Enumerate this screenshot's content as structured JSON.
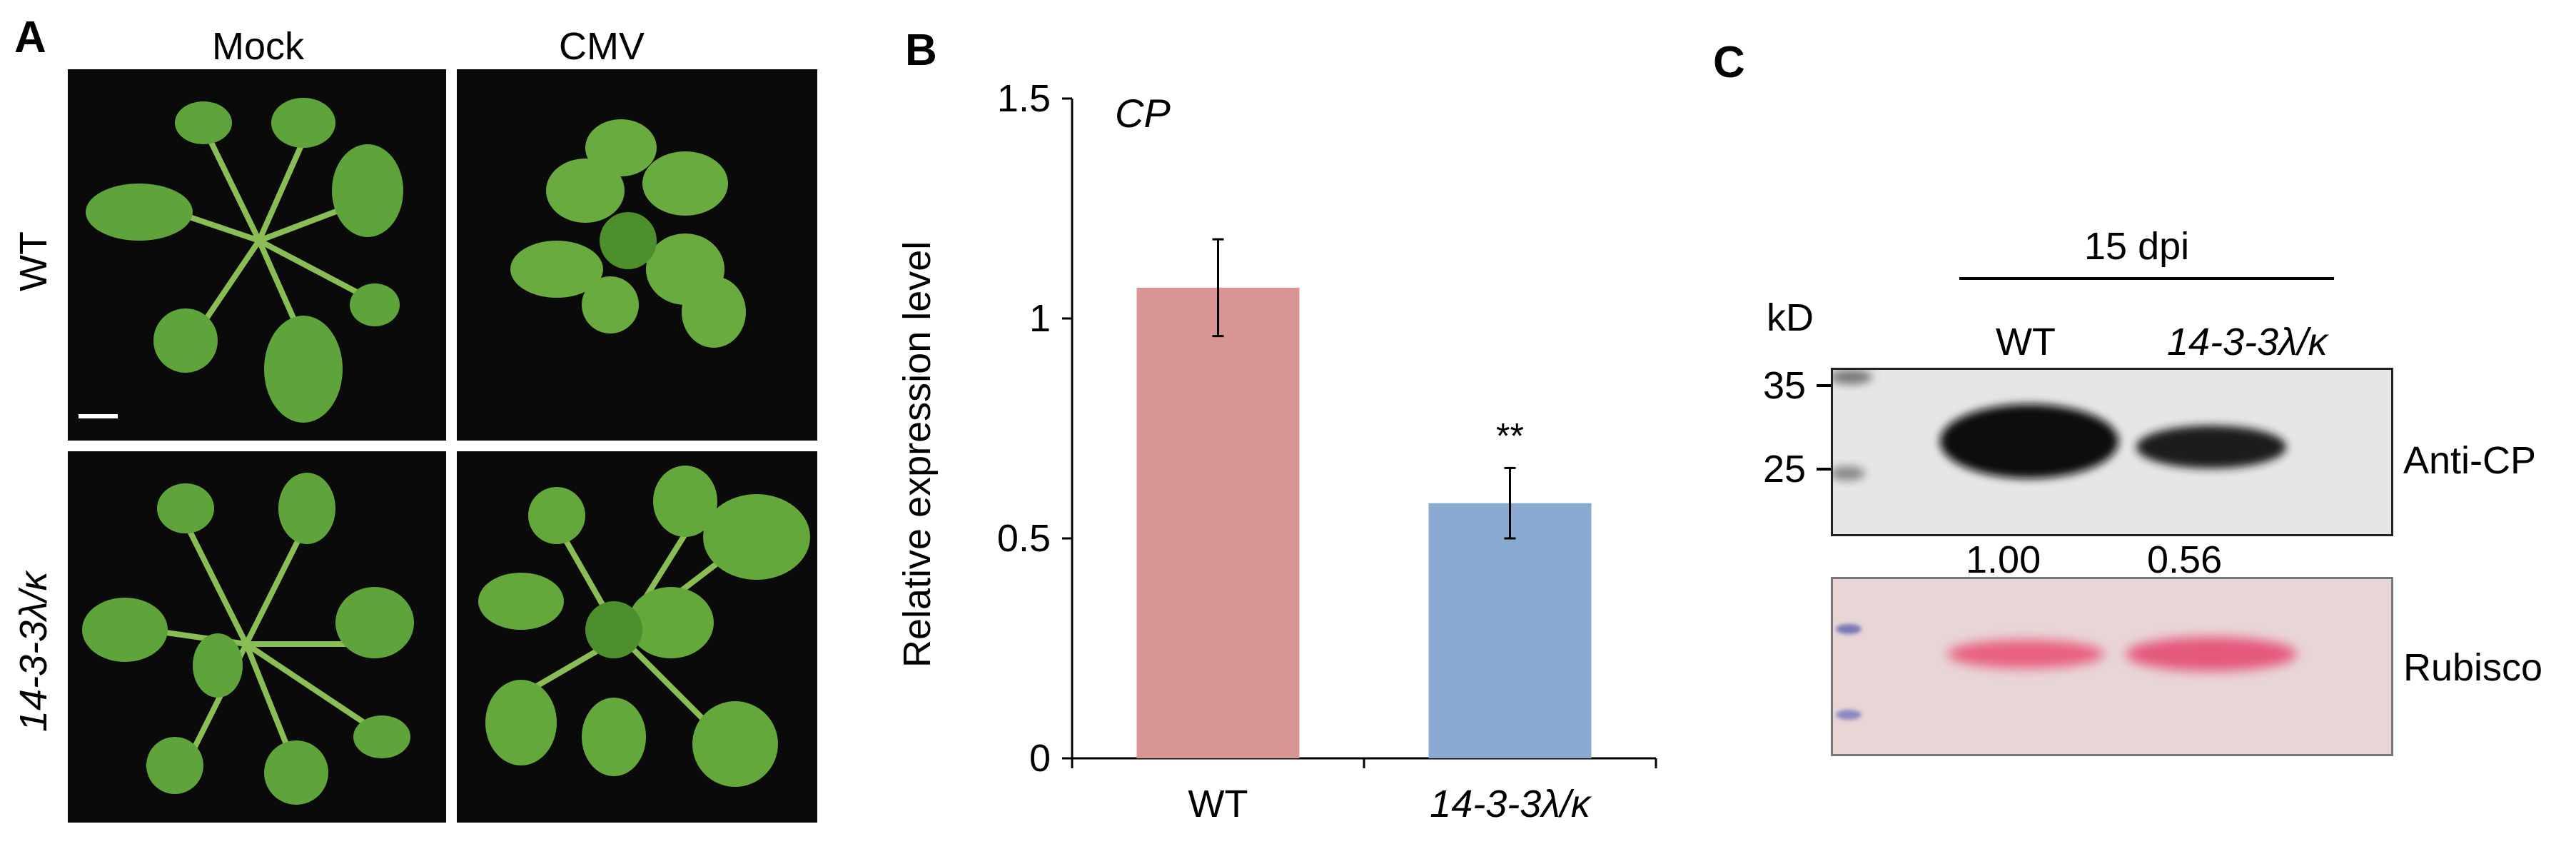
{
  "panel_a": {
    "letter": "A",
    "columns": [
      "Mock",
      "CMV"
    ],
    "rows": [
      "WT",
      "14-3-3λ/κ"
    ],
    "photo_descriptions": [
      "wt-mock-plant",
      "wt-cmv-plant",
      "mutant-mock-plant",
      "mutant-cmv-plant"
    ]
  },
  "panel_b": {
    "letter": "B"
  },
  "chart_data": {
    "type": "bar",
    "title": "CP",
    "xlabel": "",
    "ylabel": "Relative expression level",
    "categories": [
      "WT",
      "14-3-3λ/κ"
    ],
    "values": [
      1.07,
      0.58
    ],
    "errors": [
      0.11,
      0.08
    ],
    "colors": [
      "#d99594",
      "#8aaad2"
    ],
    "significance": [
      "",
      "**"
    ],
    "ylim": [
      0,
      1.5
    ],
    "yticks": [
      0,
      0.5,
      1,
      1.5
    ],
    "ytick_labels": [
      "0",
      "0.5",
      "1",
      "1.5"
    ],
    "grid": false
  },
  "panel_c": {
    "letter": "C",
    "time_label": "15 dpi",
    "kd_label": "kD",
    "markers": [
      "35",
      "25"
    ],
    "lanes": [
      "WT",
      "14-3-3λ/κ"
    ],
    "quantification": [
      "1.00",
      "0.56"
    ],
    "blot_labels": [
      "Anti-CP",
      "Rubisco"
    ]
  }
}
